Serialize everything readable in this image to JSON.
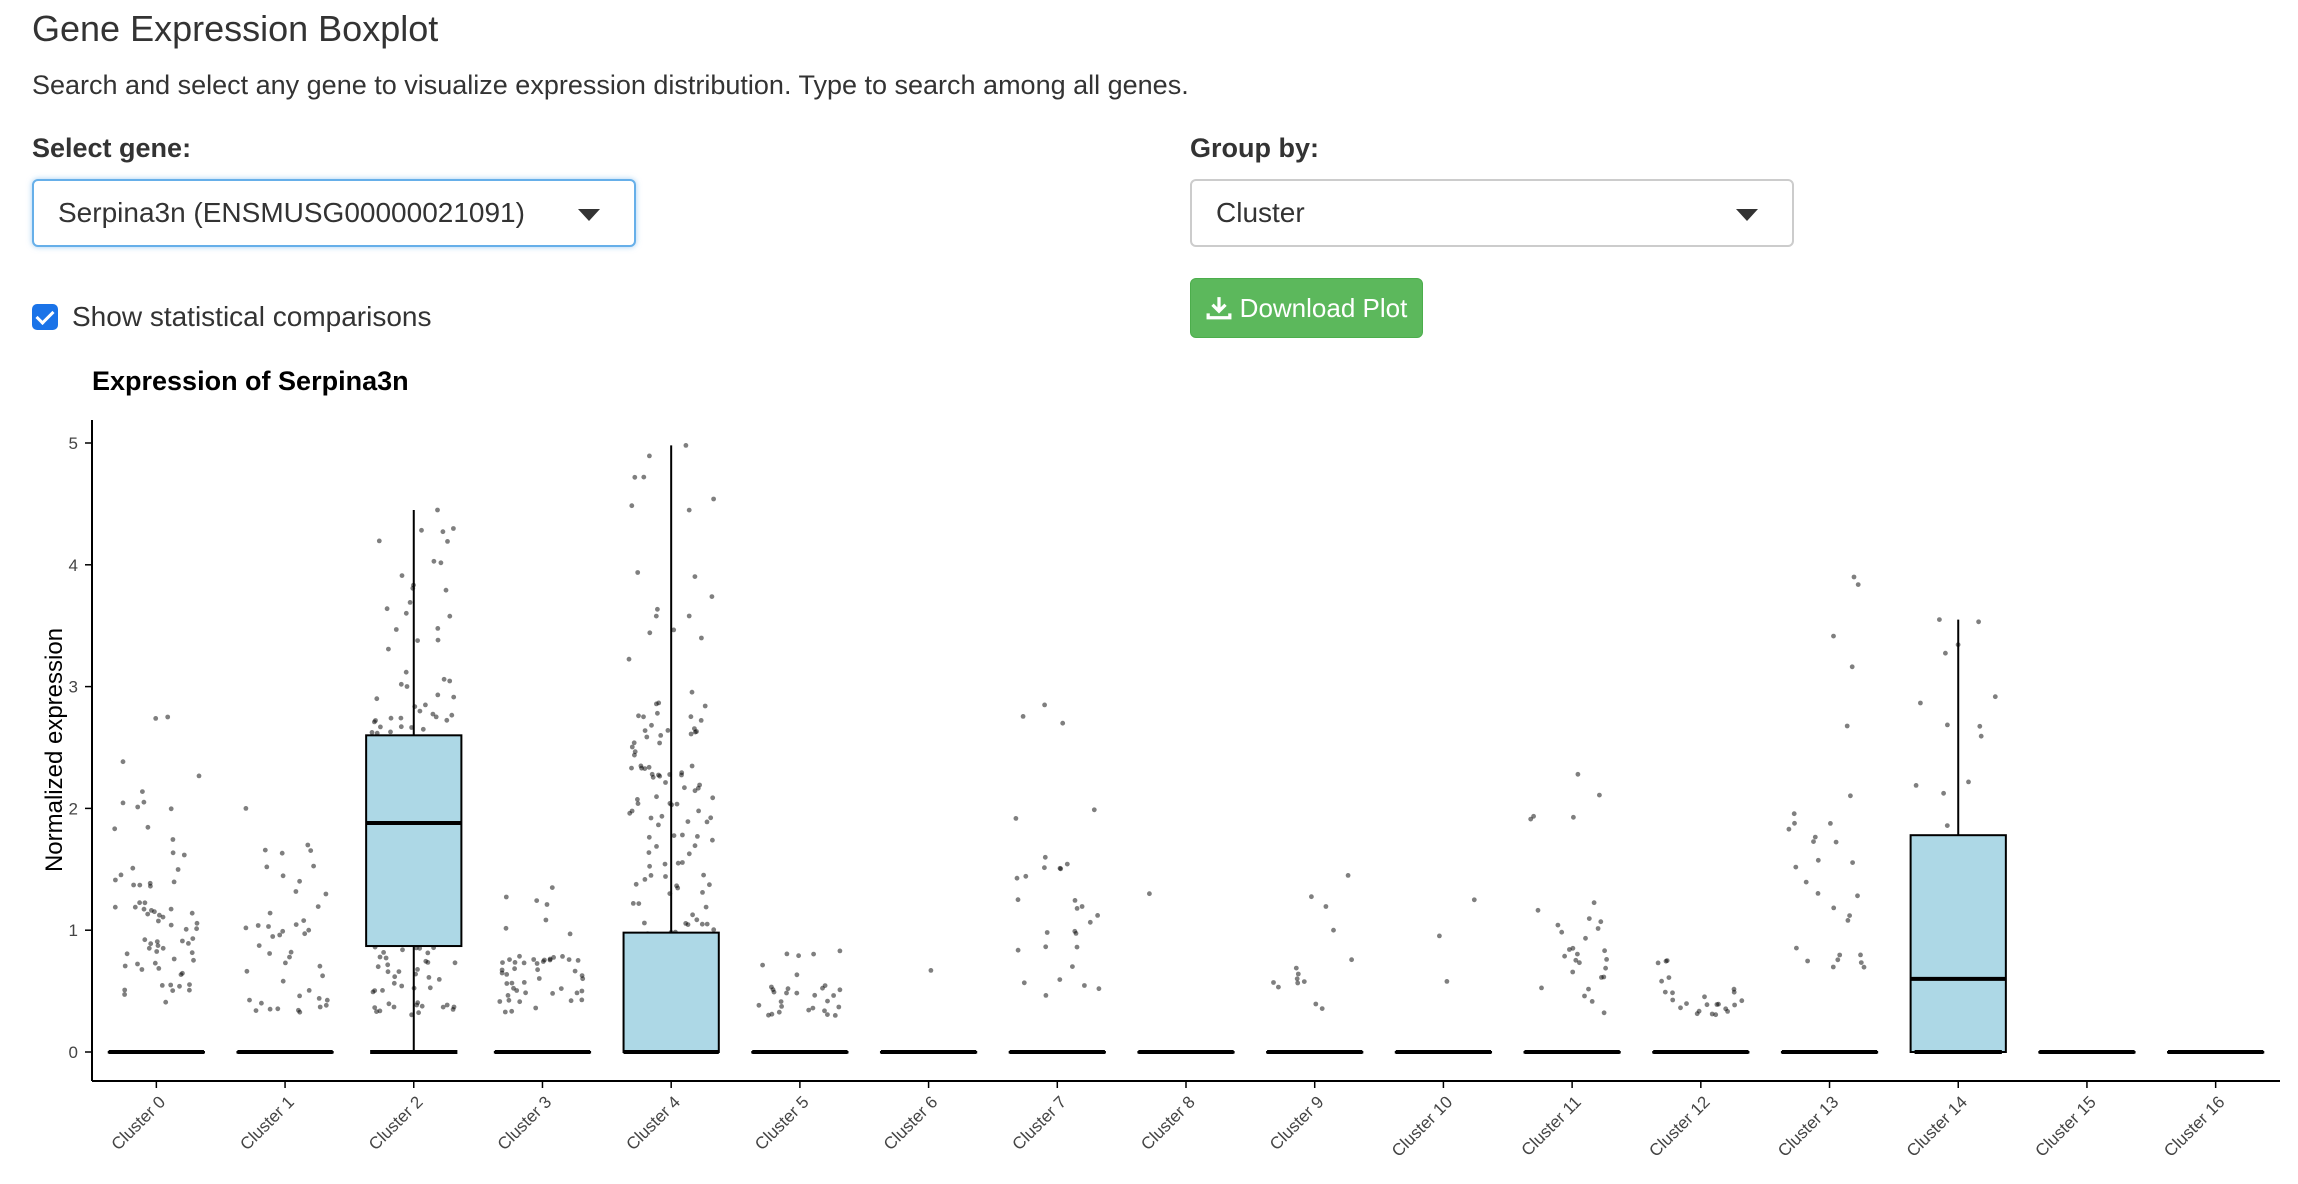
{
  "header": {
    "title": "Gene Expression Boxplot",
    "description": "Search and select any gene to visualize expression distribution. Type to search among all genes."
  },
  "controls": {
    "gene_label": "Select gene:",
    "gene_value": "Serpina3n (ENSMUSG00000021091)",
    "group_label": "Group by:",
    "group_value": "Cluster",
    "stats_checkbox_label": "Show statistical comparisons",
    "stats_checked": true,
    "download_label": "Download Plot",
    "download_icon": "download-icon",
    "download_color": "#5cb85c"
  },
  "chart_data": {
    "type": "boxplot",
    "title": "Expression of Serpina3n",
    "xlabel": "",
    "ylabel": "Normalized expression",
    "ylim": [
      0,
      5.2
    ],
    "yticks": [
      0,
      1,
      2,
      3,
      4,
      5
    ],
    "box_color": "#add8e6",
    "point_color": "#000000",
    "categories": [
      "Cluster 0",
      "Cluster 1",
      "Cluster 2",
      "Cluster 3",
      "Cluster 4",
      "Cluster 5",
      "Cluster 6",
      "Cluster 7",
      "Cluster 8",
      "Cluster 9",
      "Cluster 10",
      "Cluster 11",
      "Cluster 12",
      "Cluster 13",
      "Cluster 14",
      "Cluster 15",
      "Cluster 16"
    ],
    "boxes": [
      {
        "q1": 0,
        "median": 0,
        "q3": 0,
        "whisker_low": 0,
        "whisker_high": 0,
        "points_max": 2.75,
        "points_min_nonzero": 0.4,
        "density": 70
      },
      {
        "q1": 0,
        "median": 0,
        "q3": 0,
        "whisker_low": 0,
        "whisker_high": 0,
        "points_max": 2.0,
        "points_min_nonzero": 0.3,
        "density": 45
      },
      {
        "q1": 0.87,
        "median": 1.88,
        "q3": 2.6,
        "whisker_low": 0,
        "whisker_high": 4.45,
        "points_max": 4.45,
        "points_min_nonzero": 0.3,
        "density": 220
      },
      {
        "q1": 0,
        "median": 0,
        "q3": 0,
        "whisker_low": 0,
        "whisker_high": 0,
        "points_max": 1.35,
        "points_min_nonzero": 0.3,
        "density": 50
      },
      {
        "q1": 0,
        "median": 0,
        "q3": 0.98,
        "whisker_low": 0,
        "whisker_high": 4.98,
        "points_max": 4.98,
        "points_min_nonzero": 0.3,
        "density": 140
      },
      {
        "q1": 0,
        "median": 0,
        "q3": 0,
        "whisker_low": 0,
        "whisker_high": 0,
        "points_max": 0.83,
        "points_min_nonzero": 0.3,
        "density": 30
      },
      {
        "q1": 0,
        "median": 0,
        "q3": 0,
        "whisker_low": 0,
        "whisker_high": 0,
        "points_max": 0.67,
        "points_min_nonzero": 0.67,
        "density": 1
      },
      {
        "q1": 0,
        "median": 0,
        "q3": 0,
        "whisker_low": 0,
        "whisker_high": 0,
        "points_max": 2.85,
        "points_min_nonzero": 0.4,
        "density": 30
      },
      {
        "q1": 0,
        "median": 0,
        "q3": 0,
        "whisker_low": 0,
        "whisker_high": 0,
        "points_max": 1.3,
        "points_min_nonzero": 1.3,
        "density": 1
      },
      {
        "q1": 0,
        "median": 0,
        "q3": 0,
        "whisker_low": 0,
        "whisker_high": 0,
        "points_max": 1.45,
        "points_min_nonzero": 0.35,
        "density": 14
      },
      {
        "q1": 0,
        "median": 0,
        "q3": 0,
        "whisker_low": 0,
        "whisker_high": 0,
        "points_max": 1.25,
        "points_min_nonzero": 0.55,
        "density": 3
      },
      {
        "q1": 0,
        "median": 0,
        "q3": 0,
        "whisker_low": 0,
        "whisker_high": 0,
        "points_max": 2.28,
        "points_min_nonzero": 0.3,
        "density": 30
      },
      {
        "q1": 0,
        "median": 0,
        "q3": 0,
        "whisker_low": 0,
        "whisker_high": 0,
        "points_max": 0.75,
        "points_min_nonzero": 0.3,
        "density": 24
      },
      {
        "q1": 0,
        "median": 0,
        "q3": 0,
        "whisker_low": 0,
        "whisker_high": 0,
        "points_max": 3.9,
        "points_min_nonzero": 0.55,
        "density": 30
      },
      {
        "q1": 0,
        "median": 0.6,
        "q3": 1.78,
        "whisker_low": 0,
        "whisker_high": 3.55,
        "points_max": 3.55,
        "points_min_nonzero": 0.4,
        "density": 50
      },
      {
        "q1": 0,
        "median": 0,
        "q3": 0,
        "whisker_low": 0,
        "whisker_high": 0,
        "points_max": 0,
        "points_min_nonzero": 0,
        "density": 0
      },
      {
        "q1": 0,
        "median": 0,
        "q3": 0,
        "whisker_low": 0,
        "whisker_high": 0,
        "points_max": 0,
        "points_min_nonzero": 0,
        "density": 0
      }
    ]
  }
}
